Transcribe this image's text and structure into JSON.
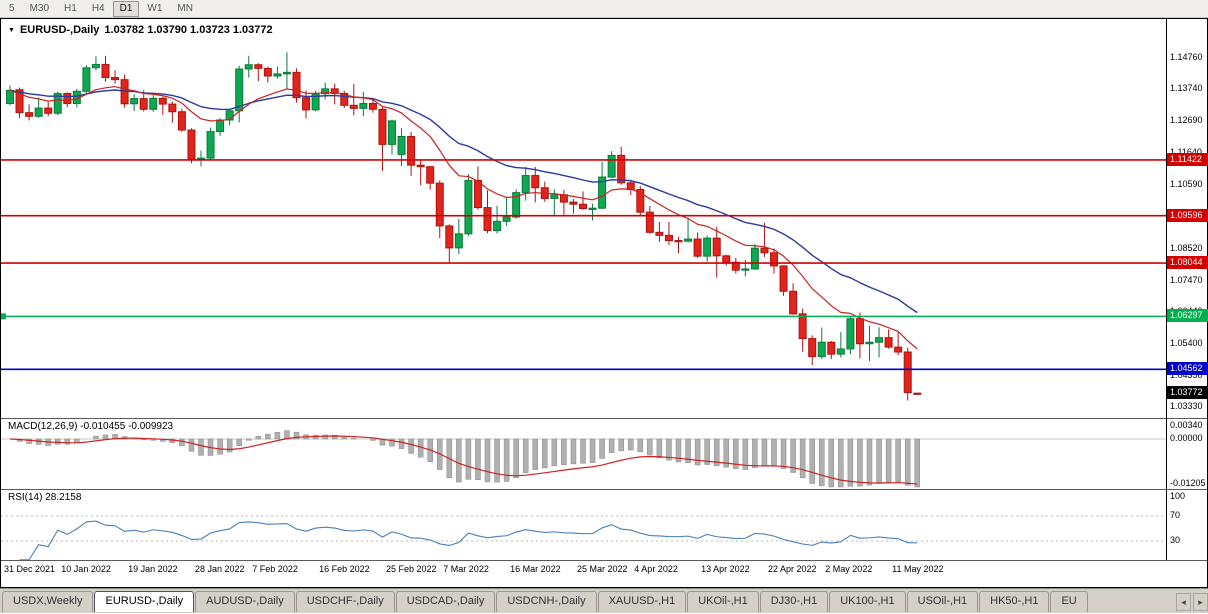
{
  "toolbar": {
    "periods": [
      "5",
      "M30",
      "H1",
      "H4",
      "D1",
      "W1",
      "MN"
    ],
    "active_period": "D1"
  },
  "chart_header": {
    "dropdown_icon": "▼",
    "symbol": "EURUSD-,Daily",
    "ohlc": "1.03782 1.03790 1.03723 1.03772"
  },
  "main_axis": {
    "labels": [
      "1.14760",
      "1.13740",
      "1.12690",
      "1.11640",
      "1.10590",
      "1.09540",
      "1.08520",
      "1.07470",
      "1.06440",
      "1.05400",
      "1.04350",
      "1.03330"
    ]
  },
  "hlines": [
    {
      "price": 1.11422,
      "label": "1.11422",
      "color": "#d40000"
    },
    {
      "price": 1.09596,
      "label": "1.09596",
      "color": "#d40000"
    },
    {
      "price": 1.08044,
      "label": "1.08044",
      "color": "#d40000"
    },
    {
      "price": 1.06297,
      "label": "1.06297",
      "color": "#00b050"
    },
    {
      "price": 1.04562,
      "label": "1.04562",
      "color": "#0000cc"
    }
  ],
  "current_price_tag": {
    "label": "1.03772",
    "price": 1.03772,
    "color": "#000000"
  },
  "macd": {
    "label": "MACD(12,26,9) -0.010455 -0.009923",
    "axis_labels": [
      "0.00340",
      "0.00000",
      "-0.01205"
    ]
  },
  "rsi": {
    "label": "RSI(14) 28.2158",
    "axis_labels": [
      "100",
      "70",
      "30"
    ],
    "level_lines": [
      70,
      30
    ]
  },
  "x_axis": {
    "labels": [
      "31 Dec 2021",
      "10 Jan 2022",
      "19 Jan 2022",
      "28 Jan 2022",
      "7 Feb 2022",
      "16 Feb 2022",
      "25 Feb 2022",
      "7 Mar 2022",
      "16 Mar 2022",
      "25 Mar 2022",
      "4 Apr 2022",
      "13 Apr 2022",
      "22 Apr 2022",
      "2 May 2022",
      "11 May 2022"
    ],
    "label_indices": [
      0,
      6,
      13,
      20,
      26,
      33,
      40,
      46,
      53,
      60,
      66,
      73,
      80,
      86,
      93
    ]
  },
  "tabs": {
    "items": [
      "USDX,Weekly",
      "EURUSD-,Daily",
      "AUDUSD-,Daily",
      "USDCHF-,Daily",
      "USDCAD-,Daily",
      "USDCNH-,Daily",
      "XAUUSD-,H1",
      "UKOil-,H1",
      "DJ30-,H1",
      "UK100-,H1",
      "USOil-,H1",
      "HK50-,H1",
      "EU"
    ],
    "active": "EURUSD-,Daily",
    "scroll_left_icon": "◂",
    "scroll_right_icon": "▸"
  },
  "colors": {
    "up": "#0fa852",
    "up_border": "#0b7a3c",
    "down": "#e3241c",
    "down_border": "#a91511",
    "ma_fast": "#cc2222",
    "ma_slow": "#2b3a9e",
    "macd_hist": "#b0b0b0",
    "macd_hist_border": "#8a8a8a",
    "macd_signal": "#cc2222",
    "rsi_line": "#4a7ebb",
    "hline_red": "#d40000",
    "hline_green": "#00b050",
    "hline_blue": "#0000cc"
  },
  "chart_data": {
    "type": "candlestick",
    "symbol": "EURUSD-",
    "timeframe": "Daily",
    "ohlc_current": {
      "open": 1.03782,
      "high": 1.0379,
      "low": 1.03723,
      "close": 1.03772
    },
    "price_axis_range": [
      1.0297,
      1.1519
    ],
    "horizontal_levels": [
      1.11422,
      1.09596,
      1.08044,
      1.06297,
      1.04562
    ],
    "overlays": {
      "ema_fast_period": 12,
      "ema_slow_period": 26
    },
    "indicators": {
      "macd": {
        "params": [
          12,
          26,
          9
        ],
        "current_main": -0.010455,
        "current_signal": -0.009923,
        "axis_range": [
          0.0034,
          -0.01205
        ]
      },
      "rsi": {
        "period": 14,
        "current": 28.2158,
        "levels": [
          70,
          30
        ],
        "axis_range": [
          0,
          100
        ]
      }
    },
    "candles": [
      [
        1.1327,
        1.1386,
        1.1321,
        1.137
      ],
      [
        1.1372,
        1.1379,
        1.1279,
        1.1297
      ],
      [
        1.1297,
        1.1324,
        1.1272,
        1.1285
      ],
      [
        1.1285,
        1.1347,
        1.128,
        1.1312
      ],
      [
        1.1312,
        1.1332,
        1.1285,
        1.1295
      ],
      [
        1.1295,
        1.1366,
        1.1288,
        1.136
      ],
      [
        1.136,
        1.1363,
        1.1315,
        1.1327
      ],
      [
        1.1327,
        1.1375,
        1.1314,
        1.1367
      ],
      [
        1.1367,
        1.1453,
        1.136,
        1.1444
      ],
      [
        1.1444,
        1.1481,
        1.1435,
        1.1455
      ],
      [
        1.1455,
        1.1483,
        1.1398,
        1.1412
      ],
      [
        1.1412,
        1.1436,
        1.1392,
        1.1405
      ],
      [
        1.1405,
        1.1422,
        1.1313,
        1.1326
      ],
      [
        1.1326,
        1.1357,
        1.1302,
        1.1343
      ],
      [
        1.1343,
        1.137,
        1.1301,
        1.1308
      ],
      [
        1.1308,
        1.136,
        1.13,
        1.1344
      ],
      [
        1.1344,
        1.1349,
        1.129,
        1.1325
      ],
      [
        1.1325,
        1.1333,
        1.1264,
        1.13
      ],
      [
        1.13,
        1.131,
        1.1234,
        1.124
      ],
      [
        1.124,
        1.1246,
        1.1131,
        1.1144
      ],
      [
        1.1144,
        1.1173,
        1.1121,
        1.1148
      ],
      [
        1.1148,
        1.1248,
        1.1141,
        1.1235
      ],
      [
        1.1235,
        1.1279,
        1.1221,
        1.1273
      ],
      [
        1.1273,
        1.1305,
        1.1255,
        1.1303
      ],
      [
        1.1303,
        1.1451,
        1.1265,
        1.144
      ],
      [
        1.144,
        1.1483,
        1.1412,
        1.1454
      ],
      [
        1.1454,
        1.1459,
        1.14,
        1.1442
      ],
      [
        1.1442,
        1.1448,
        1.1396,
        1.1417
      ],
      [
        1.1417,
        1.1448,
        1.1408,
        1.1424
      ],
      [
        1.1424,
        1.1495,
        1.1375,
        1.1429
      ],
      [
        1.1429,
        1.1442,
        1.133,
        1.1346
      ],
      [
        1.1346,
        1.1369,
        1.1278,
        1.1306
      ],
      [
        1.1306,
        1.1369,
        1.1301,
        1.1359
      ],
      [
        1.1359,
        1.1395,
        1.1341,
        1.1375
      ],
      [
        1.1375,
        1.1392,
        1.1324,
        1.136
      ],
      [
        1.136,
        1.1369,
        1.1312,
        1.1321
      ],
      [
        1.1321,
        1.1391,
        1.1288,
        1.1311
      ],
      [
        1.1311,
        1.1365,
        1.1286,
        1.1327
      ],
      [
        1.1327,
        1.1342,
        1.1297,
        1.1308
      ],
      [
        1.1308,
        1.1315,
        1.1106,
        1.1193
      ],
      [
        1.1193,
        1.1274,
        1.116,
        1.127
      ],
      [
        1.116,
        1.1246,
        1.1122,
        1.1219
      ],
      [
        1.1219,
        1.1234,
        1.109,
        1.1125
      ],
      [
        1.1125,
        1.1145,
        1.1059,
        1.112
      ],
      [
        1.112,
        1.1121,
        1.1045,
        1.1066
      ],
      [
        1.1066,
        1.1075,
        1.0886,
        1.0926
      ],
      [
        1.0926,
        1.0931,
        1.0806,
        1.0854
      ],
      [
        1.0854,
        1.0949,
        1.0834,
        1.09
      ],
      [
        1.09,
        1.1096,
        1.0893,
        1.1075
      ],
      [
        1.1075,
        1.1121,
        1.0979,
        1.0986
      ],
      [
        1.0986,
        1.1043,
        1.0902,
        1.0911
      ],
      [
        1.0911,
        1.0992,
        1.0901,
        1.0941
      ],
      [
        1.0941,
        1.102,
        1.0926,
        1.0955
      ],
      [
        1.0955,
        1.1046,
        1.095,
        1.1035
      ],
      [
        1.1035,
        1.1119,
        1.1009,
        1.1091
      ],
      [
        1.1091,
        1.1119,
        1.1003,
        1.1051
      ],
      [
        1.1051,
        1.1071,
        1.1005,
        1.1016
      ],
      [
        1.1016,
        1.1046,
        1.0962,
        1.1028
      ],
      [
        1.1028,
        1.1044,
        1.0963,
        1.1004
      ],
      [
        1.1004,
        1.1014,
        1.0966,
        1.0997
      ],
      [
        1.0997,
        1.1039,
        1.0979,
        1.0983
      ],
      [
        1.0983,
        1.0999,
        1.0944,
        1.0984
      ],
      [
        1.0984,
        1.1137,
        1.0982,
        1.1086
      ],
      [
        1.1086,
        1.1171,
        1.1083,
        1.1157
      ],
      [
        1.1157,
        1.1185,
        1.1061,
        1.1067
      ],
      [
        1.1067,
        1.1077,
        1.1027,
        1.1045
      ],
      [
        1.1045,
        1.1056,
        1.096,
        1.0971
      ],
      [
        1.0971,
        1.0991,
        1.09,
        1.0905
      ],
      [
        1.0905,
        1.0939,
        1.0874,
        1.0895
      ],
      [
        1.0895,
        1.0939,
        1.0864,
        1.0878
      ],
      [
        1.0878,
        1.089,
        1.0836,
        1.0876
      ],
      [
        1.0876,
        1.095,
        1.0872,
        1.0883
      ],
      [
        1.0883,
        1.0904,
        1.0821,
        1.0827
      ],
      [
        1.0827,
        1.0895,
        1.0809,
        1.0886
      ],
      [
        1.0886,
        1.0923,
        1.0757,
        1.0828
      ],
      [
        1.0828,
        1.0832,
        1.0796,
        1.0807
      ],
      [
        1.0807,
        1.0822,
        1.077,
        1.0781
      ],
      [
        1.0781,
        1.0815,
        1.0761,
        1.0785
      ],
      [
        1.0785,
        1.0867,
        1.0782,
        1.0853
      ],
      [
        1.0853,
        1.0936,
        1.0824,
        1.0838
      ],
      [
        1.0838,
        1.0852,
        1.077,
        1.0795
      ],
      [
        1.0795,
        1.0797,
        1.0697,
        1.0712
      ],
      [
        1.0712,
        1.0738,
        1.0635,
        1.0638
      ],
      [
        1.0638,
        1.0655,
        1.0514,
        1.0557
      ],
      [
        1.0557,
        1.0568,
        1.047,
        1.0498
      ],
      [
        1.0498,
        1.0593,
        1.049,
        1.0545
      ],
      [
        1.0545,
        1.0549,
        1.049,
        1.0506
      ],
      [
        1.0506,
        1.0578,
        1.0495,
        1.0523
      ],
      [
        1.0523,
        1.0632,
        1.0506,
        1.0622
      ],
      [
        1.0622,
        1.0642,
        1.0492,
        1.054
      ],
      [
        1.054,
        1.0599,
        1.0483,
        1.0545
      ],
      [
        1.0545,
        1.0594,
        1.0495,
        1.056
      ],
      [
        1.056,
        1.0587,
        1.0524,
        1.0529
      ],
      [
        1.0529,
        1.0578,
        1.0503,
        1.0513
      ],
      [
        1.0513,
        1.0527,
        1.0354,
        1.038
      ],
      [
        1.03782,
        1.0379,
        1.03723,
        1.03772
      ]
    ]
  }
}
